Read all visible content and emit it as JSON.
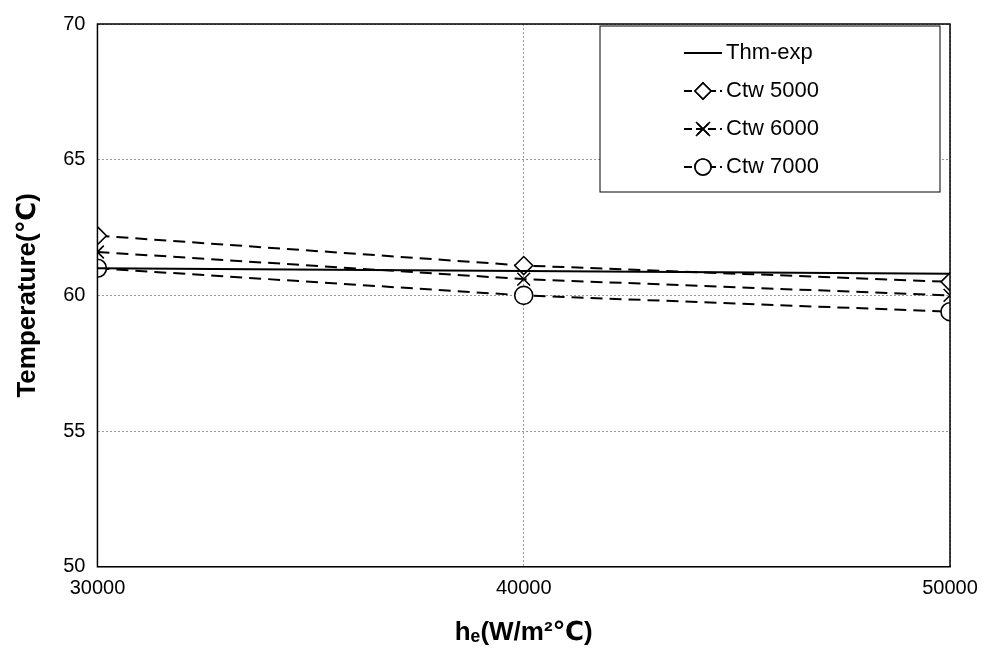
{
  "chart_data": {
    "type": "line",
    "x_label": "hₑ(W/m²℃)",
    "y_label": "Temperature(℃)",
    "x": [
      30000,
      40000,
      50000
    ],
    "series": [
      {
        "name": "Thm-exp",
        "color": "#000000",
        "values": [
          61.0,
          60.9,
          60.8
        ],
        "marker": "none",
        "line_style": "solid"
      },
      {
        "name": "Ctw 5000",
        "color": "#000000",
        "values": [
          62.2,
          61.1,
          60.5
        ],
        "marker": "diamond",
        "line_style": "dashed"
      },
      {
        "name": "Ctw 6000",
        "color": "#000000",
        "values": [
          61.6,
          60.6,
          60.0
        ],
        "marker": "x",
        "line_style": "dashed"
      },
      {
        "name": "Ctw 7000",
        "color": "#000000",
        "values": [
          61.0,
          60.0,
          59.4
        ],
        "marker": "circle",
        "line_style": "dashed"
      }
    ],
    "xlim": [
      30000,
      50000
    ],
    "xticks": [
      30000,
      40000,
      50000
    ],
    "ylim": [
      50,
      70
    ],
    "yticks": [
      50,
      55,
      60,
      65,
      70
    ],
    "grid": true,
    "legend": "upper right"
  }
}
